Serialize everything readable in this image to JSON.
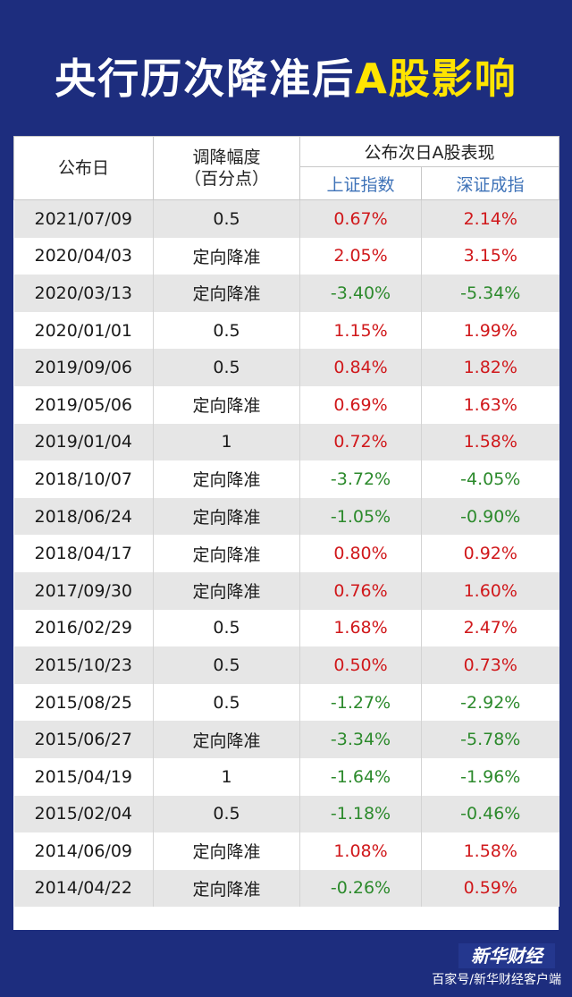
{
  "title": {
    "part1": "央行历次降准后",
    "part2": "A股影响"
  },
  "colors": {
    "background": "#1d2d7e",
    "title_highlight": "#ffe400",
    "up": "#d0181b",
    "down": "#2c8a2c",
    "subheader": "#3f73b8"
  },
  "table": {
    "headers": {
      "date": "公布日",
      "cut_line1": "调降幅度",
      "cut_line2": "（百分点）",
      "next_day": "公布次日A股表现",
      "sh": "上证指数",
      "sz": "深证成指"
    },
    "rows": [
      {
        "date": "2021/07/09",
        "cut": "0.5",
        "sh": "0.67%",
        "sz": "2.14%"
      },
      {
        "date": "2020/04/03",
        "cut": "定向降准",
        "sh": "2.05%",
        "sz": "3.15%"
      },
      {
        "date": "2020/03/13",
        "cut": "定向降准",
        "sh": "-3.40%",
        "sz": "-5.34%"
      },
      {
        "date": "2020/01/01",
        "cut": "0.5",
        "sh": "1.15%",
        "sz": "1.99%"
      },
      {
        "date": "2019/09/06",
        "cut": "0.5",
        "sh": "0.84%",
        "sz": "1.82%"
      },
      {
        "date": "2019/05/06",
        "cut": "定向降准",
        "sh": "0.69%",
        "sz": "1.63%"
      },
      {
        "date": "2019/01/04",
        "cut": "1",
        "sh": "0.72%",
        "sz": "1.58%"
      },
      {
        "date": "2018/10/07",
        "cut": "定向降准",
        "sh": "-3.72%",
        "sz": "-4.05%"
      },
      {
        "date": "2018/06/24",
        "cut": "定向降准",
        "sh": "-1.05%",
        "sz": "-0.90%"
      },
      {
        "date": "2018/04/17",
        "cut": "定向降准",
        "sh": "0.80%",
        "sz": "0.92%"
      },
      {
        "date": "2017/09/30",
        "cut": "定向降准",
        "sh": "0.76%",
        "sz": "1.60%"
      },
      {
        "date": "2016/02/29",
        "cut": "0.5",
        "sh": "1.68%",
        "sz": "2.47%"
      },
      {
        "date": "2015/10/23",
        "cut": "0.5",
        "sh": "0.50%",
        "sz": "0.73%"
      },
      {
        "date": "2015/08/25",
        "cut": "0.5",
        "sh": "-1.27%",
        "sz": "-2.92%"
      },
      {
        "date": "2015/06/27",
        "cut": "定向降准",
        "sh": "-3.34%",
        "sz": "-5.78%"
      },
      {
        "date": "2015/04/19",
        "cut": "1",
        "sh": "-1.64%",
        "sz": "-1.96%"
      },
      {
        "date": "2015/02/04",
        "cut": "0.5",
        "sh": "-1.18%",
        "sz": "-0.46%"
      },
      {
        "date": "2014/06/09",
        "cut": "定向降准",
        "sh": "1.08%",
        "sz": "1.58%"
      },
      {
        "date": "2014/04/22",
        "cut": "定向降准",
        "sh": "-0.26%",
        "sz": "0.59%"
      }
    ]
  },
  "footer": {
    "logo": "新华财经",
    "source": "百家号/新华财经客户端"
  }
}
